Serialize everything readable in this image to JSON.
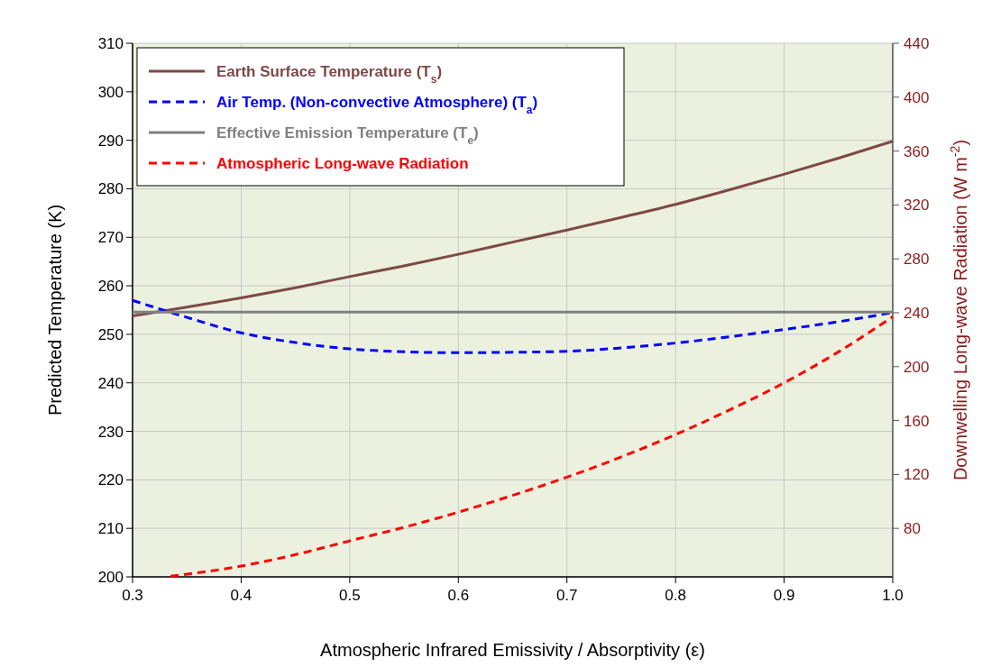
{
  "chart_data": {
    "type": "line",
    "xlabel": "Atmospheric Infrared Emissivity / Absorptivity (ε)",
    "ylabel": "Predicted Temperature (K)",
    "y2label": "Downwelling Long-wave Radiation (W m$^{-2}$)",
    "xlim": [
      0.3,
      1.0
    ],
    "xticks": [
      {
        "value": 0.3,
        "label": "0.3"
      },
      {
        "value": 0.4,
        "label": "0.4"
      },
      {
        "value": 0.5,
        "label": "0.5"
      },
      {
        "value": 0.6,
        "label": "0.6"
      },
      {
        "value": 0.7,
        "label": "0.7"
      },
      {
        "value": 0.8,
        "label": "0.8"
      },
      {
        "value": 0.9,
        "label": "0.9"
      },
      {
        "value": 1.0,
        "label": "1.0"
      }
    ],
    "ylim": [
      200,
      310
    ],
    "yticks": [
      200,
      210,
      220,
      230,
      240,
      250,
      260,
      270,
      280,
      290,
      300,
      310
    ],
    "y2lim": [
      44,
      440
    ],
    "y2ticks": [
      80,
      120,
      160,
      200,
      240,
      280,
      320,
      360,
      400,
      440
    ],
    "grid": true,
    "legend": "top left",
    "series": [
      {
        "name": "Earth Surface Temperature (T$_{s}$)",
        "color": "#7f4848",
        "line_style": "solid",
        "x": [
          0.3,
          0.35,
          0.4,
          0.45,
          0.5,
          0.55,
          0.6,
          0.65,
          0.7,
          0.75,
          0.8,
          0.85,
          0.9,
          0.95,
          1.0
        ],
        "values": [
          253.8,
          255.6,
          257.5,
          259.6,
          261.9,
          264.1,
          266.5,
          269,
          271.5,
          274.1,
          276.8,
          279.8,
          283,
          286.3,
          289.8
        ]
      },
      {
        "name": "Air Temp. (Non-convective Atmosphere) (T$_{a}$)",
        "color": "#0000ff",
        "line_style": "dashed",
        "x": [
          0.3,
          0.35,
          0.4,
          0.45,
          0.5,
          0.55,
          0.6,
          0.65,
          0.7,
          0.75,
          0.8,
          0.85,
          0.9,
          0.95,
          1.0
        ],
        "values": [
          257,
          253.5,
          250.3,
          248.3,
          247,
          246.4,
          246.2,
          246.3,
          246.5,
          247.2,
          248.2,
          249.5,
          251,
          252.6,
          254.5
        ]
      },
      {
        "name": "Effective Emission Temperature (T$_{e}$)",
        "color": "#808080",
        "line_style": "solid",
        "x": [
          0.3,
          1.0
        ],
        "values": [
          254.6,
          254.6
        ]
      },
      {
        "name": "Atmospheric Long-wave Radiation",
        "color": "#ff0000",
        "line_style": "dashed",
        "axis": "y2",
        "x": [
          0.335,
          0.4,
          0.45,
          0.5,
          0.55,
          0.6,
          0.65,
          0.7,
          0.75,
          0.8,
          0.85,
          0.9,
          0.95,
          1.0
        ],
        "values": [
          44.5,
          52,
          60.5,
          70.7,
          80.8,
          92,
          104.5,
          118,
          133,
          149.6,
          168,
          188,
          211,
          237
        ]
      }
    ]
  }
}
